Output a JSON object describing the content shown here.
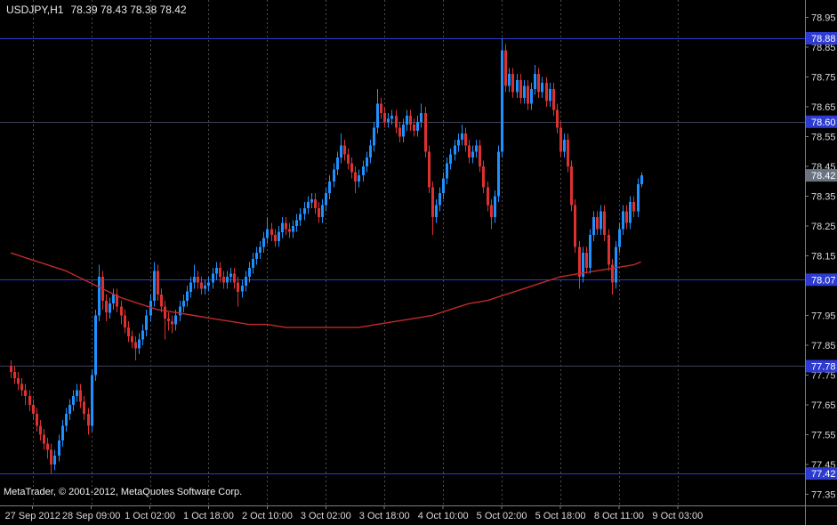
{
  "header": {
    "symbol_period": "USDJPY,H1",
    "ohlc_text": "78.39 78.43 78.38 78.42"
  },
  "footer": {
    "copyright": "MetaTrader, © 2001-2012, MetaQuotes Software Corp."
  },
  "colors": {
    "background": "#000000",
    "grid": "#4d4d4d",
    "axis_border": "#7d7d7d",
    "axis_text": "#d9d9d9",
    "candle_up": "#1e90ff",
    "candle_down": "#dd3131",
    "ma_line": "#c22a2a",
    "badge_level_bg": "#2d3bd1",
    "badge_current_bg": "#6b7280",
    "badge_text": "#ffffff"
  },
  "chart_data": {
    "type": "candlestick",
    "symbol": "USDJPY",
    "timeframe": "H1",
    "title": "USDJPY,H1 78.39 78.43 78.38 78.42",
    "current_quote": {
      "open": 78.39,
      "high": 78.43,
      "low": 78.38,
      "close": 78.42
    },
    "y_range": [
      77.31,
      79.01
    ],
    "y_axis": {
      "ticks": [
        "78.95",
        "78.85",
        "78.75",
        "78.65",
        "78.55",
        "78.45",
        "78.35",
        "78.25",
        "78.15",
        "77.95",
        "77.85",
        "77.75",
        "77.65",
        "77.55",
        "77.45",
        "77.35"
      ]
    },
    "x_axis": {
      "labels": [
        "27 Sep 2012",
        "28 Sep 09:00",
        "1 Oct 02:00",
        "1 Oct 18:00",
        "2 Oct 10:00",
        "3 Oct 02:00",
        "3 Oct 18:00",
        "4 Oct 10:00",
        "5 Oct 02:00",
        "5 Oct 18:00",
        "8 Oct 11:00",
        "9 Oct 03:00"
      ]
    },
    "levels": [
      {
        "label": "78.88",
        "price": 78.88,
        "color": "#2d3bd1"
      },
      {
        "label": "78.60",
        "price": 78.6,
        "color": "#3d4257"
      },
      {
        "label": "78.07",
        "price": 78.07,
        "color": "#2d3bd1"
      },
      {
        "label": "77.78",
        "price": 77.78,
        "color": "#3d4257"
      },
      {
        "label": "77.42",
        "price": 77.42,
        "color": "#2d3bd1"
      }
    ],
    "current_price": {
      "label": "78.42",
      "price": 78.42
    },
    "ma": {
      "label": "moving-average",
      "color": "#c22a2a",
      "points": [
        [
          0,
          78.16
        ],
        [
          5,
          78.14
        ],
        [
          10,
          78.12
        ],
        [
          15,
          78.1
        ],
        [
          20,
          78.07
        ],
        [
          25,
          78.04
        ],
        [
          30,
          78.01
        ],
        [
          35,
          77.99
        ],
        [
          40,
          77.97
        ],
        [
          45,
          77.96
        ],
        [
          50,
          77.95
        ],
        [
          55,
          77.94
        ],
        [
          60,
          77.93
        ],
        [
          65,
          77.92
        ],
        [
          70,
          77.92
        ],
        [
          75,
          77.91
        ],
        [
          80,
          77.91
        ],
        [
          85,
          77.91
        ],
        [
          90,
          77.91
        ],
        [
          95,
          77.91
        ],
        [
          100,
          77.92
        ],
        [
          105,
          77.93
        ],
        [
          110,
          77.94
        ],
        [
          115,
          77.95
        ],
        [
          120,
          77.97
        ],
        [
          125,
          77.99
        ],
        [
          130,
          78.0
        ],
        [
          135,
          78.02
        ],
        [
          140,
          78.04
        ],
        [
          145,
          78.06
        ],
        [
          150,
          78.08
        ],
        [
          155,
          78.09
        ],
        [
          160,
          78.1
        ],
        [
          165,
          78.11
        ],
        [
          170,
          78.12
        ],
        [
          172,
          78.13
        ]
      ]
    },
    "candles": [
      [
        77.78,
        77.8,
        77.74,
        77.76
      ],
      [
        77.76,
        77.78,
        77.72,
        77.74
      ],
      [
        77.74,
        77.76,
        77.7,
        77.72
      ],
      [
        77.72,
        77.74,
        77.68,
        77.7
      ],
      [
        77.7,
        77.72,
        77.65,
        77.68
      ],
      [
        77.68,
        77.7,
        77.63,
        77.65
      ],
      [
        77.65,
        77.67,
        77.6,
        77.62
      ],
      [
        77.62,
        77.64,
        77.56,
        77.58
      ],
      [
        77.58,
        77.6,
        77.53,
        77.55
      ],
      [
        77.55,
        77.57,
        77.5,
        77.52
      ],
      [
        77.52,
        77.54,
        77.47,
        77.5
      ],
      [
        77.5,
        77.52,
        77.42,
        77.45
      ],
      [
        77.45,
        77.5,
        77.43,
        77.48
      ],
      [
        77.48,
        77.55,
        77.46,
        77.53
      ],
      [
        77.53,
        77.6,
        77.51,
        77.58
      ],
      [
        77.58,
        77.64,
        77.56,
        77.62
      ],
      [
        77.62,
        77.67,
        77.6,
        77.65
      ],
      [
        77.65,
        77.7,
        77.63,
        77.68
      ],
      [
        77.68,
        77.72,
        77.66,
        77.7
      ],
      [
        77.7,
        77.72,
        77.64,
        77.66
      ],
      [
        77.66,
        77.68,
        77.6,
        77.62
      ],
      [
        77.62,
        77.64,
        77.55,
        77.58
      ],
      [
        77.58,
        77.77,
        77.56,
        77.75
      ],
      [
        77.75,
        77.97,
        77.73,
        77.95
      ],
      [
        77.95,
        78.12,
        77.93,
        78.08
      ],
      [
        78.08,
        78.1,
        77.97,
        78.0
      ],
      [
        78.0,
        78.02,
        77.93,
        77.96
      ],
      [
        77.96,
        78.01,
        77.94,
        77.99
      ],
      [
        77.99,
        78.04,
        77.97,
        78.02
      ],
      [
        78.02,
        78.04,
        77.96,
        77.98
      ],
      [
        77.98,
        78.0,
        77.92,
        77.95
      ],
      [
        77.95,
        77.97,
        77.89,
        77.91
      ],
      [
        77.91,
        77.93,
        77.86,
        77.88
      ],
      [
        77.88,
        77.9,
        77.84,
        77.86
      ],
      [
        77.86,
        77.88,
        77.8,
        77.84
      ],
      [
        77.84,
        77.89,
        77.82,
        77.87
      ],
      [
        77.87,
        77.92,
        77.85,
        77.9
      ],
      [
        77.9,
        77.97,
        77.88,
        77.95
      ],
      [
        77.95,
        78.02,
        77.93,
        78.0
      ],
      [
        78.0,
        78.13,
        77.98,
        78.1
      ],
      [
        78.1,
        78.12,
        78.0,
        78.02
      ],
      [
        78.02,
        78.04,
        77.96,
        77.98
      ],
      [
        77.98,
        78.0,
        77.87,
        77.94
      ],
      [
        77.94,
        77.96,
        77.9,
        77.93
      ],
      [
        77.93,
        77.95,
        77.89,
        77.92
      ],
      [
        77.92,
        77.97,
        77.9,
        77.95
      ],
      [
        77.95,
        78.0,
        77.93,
        77.98
      ],
      [
        77.98,
        78.02,
        77.96,
        78.0
      ],
      [
        78.0,
        78.05,
        77.98,
        78.03
      ],
      [
        78.03,
        78.08,
        78.01,
        78.06
      ],
      [
        78.06,
        78.12,
        78.04,
        78.08
      ],
      [
        78.08,
        78.1,
        78.04,
        78.06
      ],
      [
        78.06,
        78.08,
        78.02,
        78.04
      ],
      [
        78.04,
        78.07,
        78.02,
        78.05
      ],
      [
        78.05,
        78.08,
        78.03,
        78.06
      ],
      [
        78.06,
        78.11,
        78.04,
        78.09
      ],
      [
        78.09,
        78.13,
        78.07,
        78.11
      ],
      [
        78.11,
        78.13,
        78.06,
        78.08
      ],
      [
        78.08,
        78.1,
        78.04,
        78.06
      ],
      [
        78.06,
        78.1,
        78.04,
        78.08
      ],
      [
        78.08,
        78.11,
        78.06,
        78.09
      ],
      [
        78.09,
        78.11,
        78.04,
        78.06
      ],
      [
        78.06,
        78.08,
        77.98,
        78.03
      ],
      [
        78.03,
        78.07,
        78.01,
        78.05
      ],
      [
        78.05,
        78.1,
        78.03,
        78.08
      ],
      [
        78.08,
        78.13,
        78.06,
        78.11
      ],
      [
        78.11,
        78.16,
        78.09,
        78.14
      ],
      [
        78.14,
        78.18,
        78.12,
        78.16
      ],
      [
        78.16,
        78.2,
        78.14,
        78.18
      ],
      [
        78.18,
        78.23,
        78.16,
        78.21
      ],
      [
        78.21,
        78.28,
        78.19,
        78.24
      ],
      [
        78.24,
        78.26,
        78.2,
        78.22
      ],
      [
        78.22,
        78.24,
        78.18,
        78.2
      ],
      [
        78.2,
        78.25,
        78.18,
        78.23
      ],
      [
        78.23,
        78.28,
        78.21,
        78.26
      ],
      [
        78.26,
        78.28,
        78.22,
        78.24
      ],
      [
        78.24,
        78.26,
        78.21,
        78.23
      ],
      [
        78.23,
        78.27,
        78.21,
        78.25
      ],
      [
        78.25,
        78.29,
        78.23,
        78.27
      ],
      [
        78.27,
        78.31,
        78.25,
        78.29
      ],
      [
        78.29,
        78.33,
        78.27,
        78.31
      ],
      [
        78.31,
        78.35,
        78.29,
        78.33
      ],
      [
        78.33,
        78.36,
        78.31,
        78.34
      ],
      [
        78.34,
        78.36,
        78.29,
        78.31
      ],
      [
        78.31,
        78.33,
        78.26,
        78.28
      ],
      [
        78.28,
        78.34,
        78.26,
        78.32
      ],
      [
        78.32,
        78.38,
        78.3,
        78.36
      ],
      [
        78.36,
        78.42,
        78.34,
        78.4
      ],
      [
        78.4,
        78.46,
        78.38,
        78.44
      ],
      [
        78.44,
        78.5,
        78.42,
        78.48
      ],
      [
        78.48,
        78.56,
        78.46,
        78.52
      ],
      [
        78.52,
        78.54,
        78.47,
        78.49
      ],
      [
        78.49,
        78.51,
        78.44,
        78.46
      ],
      [
        78.46,
        78.48,
        78.41,
        78.43
      ],
      [
        78.43,
        78.45,
        78.36,
        78.4
      ],
      [
        78.4,
        78.44,
        78.38,
        78.42
      ],
      [
        78.42,
        78.47,
        78.4,
        78.45
      ],
      [
        78.45,
        78.5,
        78.43,
        78.48
      ],
      [
        78.48,
        78.54,
        78.46,
        78.52
      ],
      [
        78.52,
        78.6,
        78.5,
        78.58
      ],
      [
        78.58,
        78.71,
        78.56,
        78.66
      ],
      [
        78.66,
        78.68,
        78.61,
        78.63
      ],
      [
        78.63,
        78.65,
        78.58,
        78.6
      ],
      [
        78.6,
        78.63,
        78.58,
        78.61
      ],
      [
        78.61,
        78.64,
        78.59,
        78.62
      ],
      [
        78.62,
        78.64,
        78.56,
        78.58
      ],
      [
        78.58,
        78.6,
        78.53,
        78.55
      ],
      [
        78.55,
        78.61,
        78.53,
        78.59
      ],
      [
        78.59,
        78.64,
        78.57,
        78.62
      ],
      [
        78.62,
        78.64,
        78.57,
        78.59
      ],
      [
        78.59,
        78.61,
        78.55,
        78.57
      ],
      [
        78.57,
        78.62,
        78.55,
        78.6
      ],
      [
        78.6,
        78.66,
        78.58,
        78.63
      ],
      [
        78.63,
        78.65,
        78.48,
        78.5
      ],
      [
        78.5,
        78.52,
        78.36,
        78.38
      ],
      [
        78.38,
        78.4,
        78.22,
        78.28
      ],
      [
        78.28,
        78.34,
        78.26,
        78.32
      ],
      [
        78.32,
        78.38,
        78.3,
        78.36
      ],
      [
        78.36,
        78.43,
        78.34,
        78.41
      ],
      [
        78.41,
        78.48,
        78.39,
        78.46
      ],
      [
        78.46,
        78.51,
        78.44,
        78.49
      ],
      [
        78.49,
        78.54,
        78.47,
        78.52
      ],
      [
        78.52,
        78.56,
        78.5,
        78.54
      ],
      [
        78.54,
        78.59,
        78.52,
        78.56
      ],
      [
        78.56,
        78.58,
        78.5,
        78.52
      ],
      [
        78.52,
        78.54,
        78.46,
        78.48
      ],
      [
        78.48,
        78.52,
        78.46,
        78.5
      ],
      [
        78.5,
        78.54,
        78.48,
        78.52
      ],
      [
        78.52,
        78.54,
        78.43,
        78.45
      ],
      [
        78.45,
        78.47,
        78.36,
        78.38
      ],
      [
        78.38,
        78.4,
        78.3,
        78.32
      ],
      [
        78.32,
        78.34,
        78.24,
        78.28
      ],
      [
        78.28,
        78.37,
        78.26,
        78.35
      ],
      [
        78.35,
        78.52,
        78.33,
        78.5
      ],
      [
        78.5,
        78.88,
        78.48,
        78.84
      ],
      [
        78.84,
        78.86,
        78.7,
        78.72
      ],
      [
        78.72,
        78.78,
        78.7,
        78.76
      ],
      [
        78.76,
        78.78,
        78.68,
        78.7
      ],
      [
        78.7,
        78.76,
        78.68,
        78.74
      ],
      [
        78.74,
        78.76,
        78.66,
        78.68
      ],
      [
        78.68,
        78.74,
        78.66,
        78.72
      ],
      [
        78.72,
        78.74,
        78.64,
        78.66
      ],
      [
        78.66,
        78.73,
        78.64,
        78.71
      ],
      [
        78.71,
        78.79,
        78.69,
        78.76
      ],
      [
        78.76,
        78.78,
        78.68,
        78.7
      ],
      [
        78.7,
        78.75,
        78.68,
        78.73
      ],
      [
        78.73,
        78.75,
        78.65,
        78.67
      ],
      [
        78.67,
        78.73,
        78.65,
        78.71
      ],
      [
        78.71,
        78.73,
        78.62,
        78.64
      ],
      [
        78.64,
        78.66,
        78.56,
        78.58
      ],
      [
        78.58,
        78.6,
        78.48,
        78.5
      ],
      [
        78.5,
        78.56,
        78.48,
        78.54
      ],
      [
        78.54,
        78.56,
        78.43,
        78.45
      ],
      [
        78.45,
        78.47,
        78.3,
        78.32
      ],
      [
        78.32,
        78.34,
        78.16,
        78.18
      ],
      [
        78.18,
        78.2,
        78.04,
        78.08
      ],
      [
        78.08,
        78.18,
        78.06,
        78.16
      ],
      [
        78.16,
        78.18,
        78.09,
        78.11
      ],
      [
        78.11,
        78.24,
        78.09,
        78.22
      ],
      [
        78.22,
        78.3,
        78.2,
        78.28
      ],
      [
        78.28,
        78.3,
        78.22,
        78.24
      ],
      [
        78.24,
        78.32,
        78.22,
        78.3
      ],
      [
        78.3,
        78.32,
        78.2,
        78.22
      ],
      [
        78.22,
        78.24,
        78.1,
        78.12
      ],
      [
        78.12,
        78.14,
        78.02,
        78.06
      ],
      [
        78.06,
        78.2,
        78.04,
        78.18
      ],
      [
        78.18,
        78.26,
        78.16,
        78.24
      ],
      [
        78.24,
        78.32,
        78.22,
        78.3
      ],
      [
        78.3,
        78.32,
        78.24,
        78.26
      ],
      [
        78.26,
        78.35,
        78.24,
        78.33
      ],
      [
        78.33,
        78.35,
        78.28,
        78.3
      ],
      [
        78.3,
        78.41,
        78.28,
        78.39
      ],
      [
        78.39,
        78.43,
        78.38,
        78.42
      ]
    ]
  }
}
